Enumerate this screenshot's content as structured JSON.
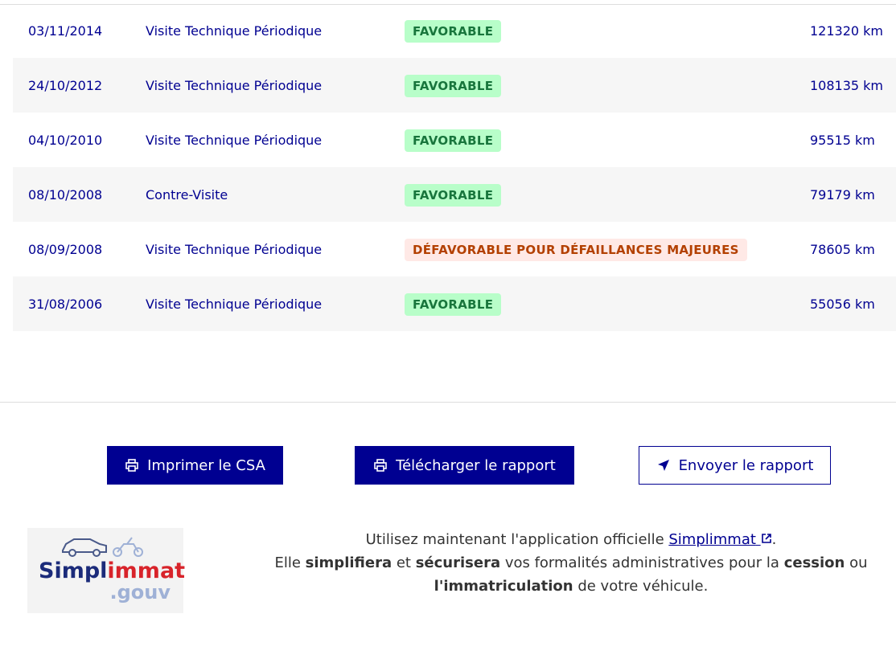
{
  "inspections": [
    {
      "date": "03/11/2014",
      "type": "Visite Technique Périodique",
      "result": "FAVORABLE",
      "status": "ok",
      "km": "121320 km"
    },
    {
      "date": "24/10/2012",
      "type": "Visite Technique Périodique",
      "result": "FAVORABLE",
      "status": "ok",
      "km": "108135 km"
    },
    {
      "date": "04/10/2010",
      "type": "Visite Technique Périodique",
      "result": "FAVORABLE",
      "status": "ok",
      "km": "95515 km"
    },
    {
      "date": "08/10/2008",
      "type": "Contre-Visite",
      "result": "FAVORABLE",
      "status": "ok",
      "km": "79179 km"
    },
    {
      "date": "08/09/2008",
      "type": "Visite Technique Périodique",
      "result": "DÉFAVORABLE POUR DÉFAILLANCES MAJEURES",
      "status": "ko",
      "km": "78605 km"
    },
    {
      "date": "31/08/2006",
      "type": "Visite Technique Périodique",
      "result": "FAVORABLE",
      "status": "ok",
      "km": "55056 km"
    }
  ],
  "actions": {
    "print": "Imprimer le CSA",
    "download": "Télécharger le rapport",
    "send": "Envoyer le rapport"
  },
  "logo": {
    "text_main": "Simpl",
    "text_accent": "immat",
    "text_sub": ".gouv"
  },
  "info": {
    "l1a": "Utilisez maintenant l'application officielle ",
    "link": "Simplimmat",
    "l1b": ".",
    "l2a": "Elle ",
    "b1": "simplifiera",
    "l2b": " et ",
    "b2": "sécurisera",
    "l2c": " vos formalités administratives pour la ",
    "b3": "cession",
    "l2d": " ou",
    "b4": "l'immatriculation",
    "l3": " de votre véhicule."
  },
  "colors": {
    "primary": "#000091",
    "ok_bg": "#b8fec9",
    "ok_text": "#18753c",
    "ko_bg": "#ffe9e6",
    "ko_text": "#b34000"
  }
}
